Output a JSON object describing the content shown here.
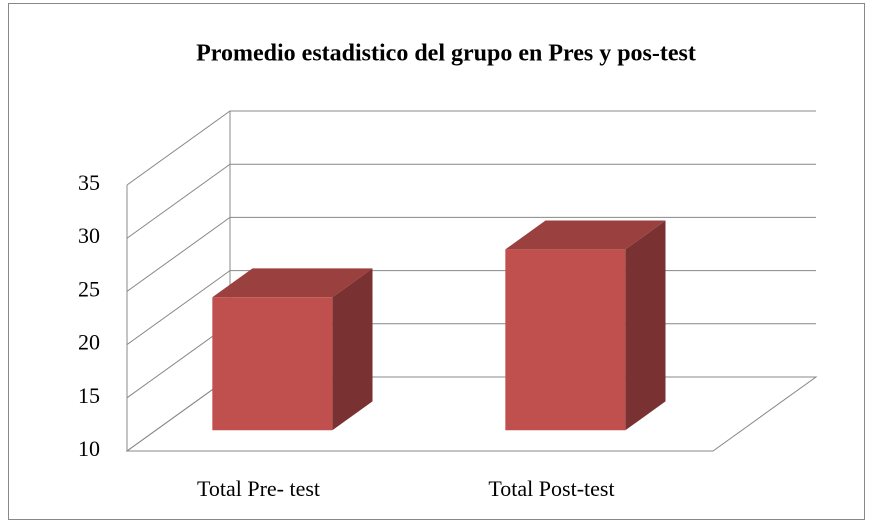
{
  "chart_data": {
    "type": "bar3d",
    "title": "Promedio estadistico del grupo en Pres y pos-test",
    "categories": [
      "Total Pre- test",
      "Total Post-test"
    ],
    "values": [
      22.5,
      27
    ],
    "color": "#c0504d",
    "ylim": [
      10,
      35
    ],
    "yticks": [
      10,
      15,
      20,
      25,
      30,
      35
    ],
    "grid": true
  }
}
